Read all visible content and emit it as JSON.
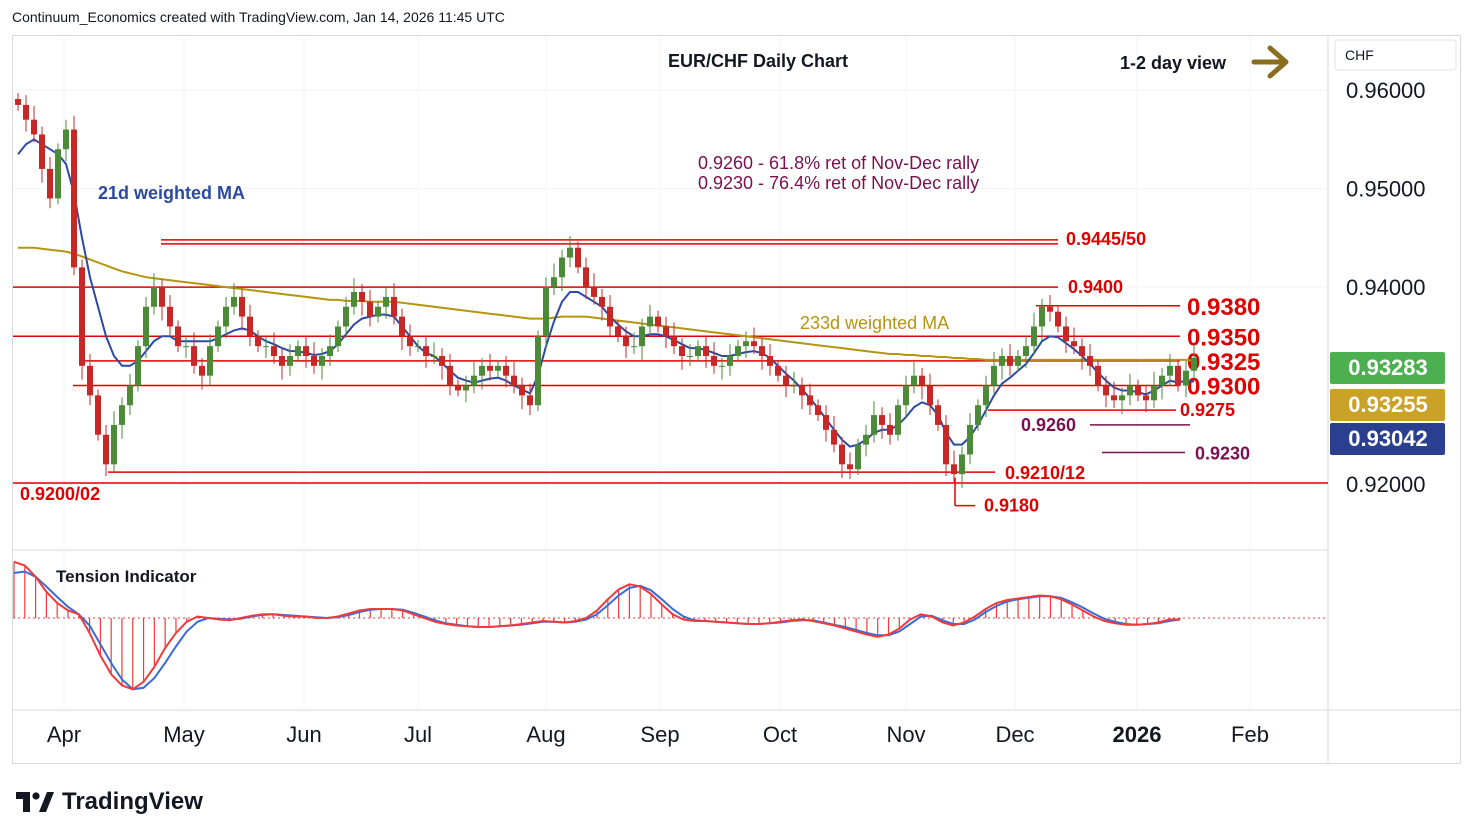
{
  "header": {
    "attribution": "Continuum_Economics created with TradingView.com, Jan 14, 2026 11:45 UTC"
  },
  "footer": {
    "logo_text": "TradingView"
  },
  "chart_title": "EUR/CHF Daily Chart",
  "view_label": "1-2 day view",
  "currency_label": "CHF",
  "ma_labels": {
    "short": "21d weighted MA",
    "long": "233d weighted MA"
  },
  "retracement_notes": [
    "0.9260 - 61.8% ret of Nov-Dec rally",
    "0.9230 - 76.4% ret of Nov-Dec rally"
  ],
  "indicator_label": "Tension Indicator",
  "colors": {
    "up": "#4c8a3a",
    "down": "#c62828",
    "level": "#e00000",
    "ma_short": "#2b4aa0",
    "ma_long": "#b5950f",
    "note": "#7a1050",
    "arrow": "#8a6d1e",
    "osc_red": "#ef3b3b",
    "osc_blue": "#3a6cd8"
  },
  "price_badges": [
    {
      "value": "0.93283",
      "color": "#4caf50"
    },
    {
      "value": "0.93255",
      "color": "#c9a227"
    },
    {
      "value": "0.93042",
      "color": "#2a3f8f"
    }
  ],
  "chart_data": {
    "type": "candlestick",
    "ylim": [
      0.9135,
      0.9655
    ],
    "y_ticks": [
      "0.96000",
      "0.95000",
      "0.94000",
      "0.92000"
    ],
    "x_ticks": [
      "Apr",
      "May",
      "Jun",
      "Jul",
      "Aug",
      "Sep",
      "Oct",
      "Nov",
      "Dec",
      "2026",
      "Feb"
    ],
    "grid": true,
    "levels": [
      {
        "label": "0.9445/50",
        "value": 0.9448,
        "bold": false
      },
      {
        "label": "0.9400",
        "value": 0.94,
        "bold": false
      },
      {
        "label": "0.9380",
        "value": 0.9381,
        "bold": true
      },
      {
        "label": "0.9350",
        "value": 0.935,
        "bold": true
      },
      {
        "label": "0.9325",
        "value": 0.9325,
        "bold": true
      },
      {
        "label": "0.9300",
        "value": 0.93,
        "bold": true
      },
      {
        "label": "0.9275",
        "value": 0.9275,
        "bold": false
      },
      {
        "label": "0.9260",
        "value": 0.926,
        "bold": false
      },
      {
        "label": "0.9230",
        "value": 0.9232,
        "bold": false
      },
      {
        "label": "0.9210/12",
        "value": 0.9212,
        "bold": false
      },
      {
        "label": "0.9200/02",
        "value": 0.9201,
        "bold": false
      },
      {
        "label": "0.9180",
        "value": 0.9178,
        "bold": false
      }
    ],
    "close_series": [
      0.9585,
      0.957,
      0.9555,
      0.952,
      0.949,
      0.954,
      0.956,
      0.942,
      0.932,
      0.929,
      0.925,
      0.922,
      0.926,
      0.928,
      0.93,
      0.934,
      0.938,
      0.94,
      0.938,
      0.936,
      0.934,
      0.934,
      0.932,
      0.931,
      0.934,
      0.936,
      0.938,
      0.939,
      0.937,
      0.935,
      0.934,
      0.934,
      0.933,
      0.932,
      0.933,
      0.934,
      0.933,
      0.932,
      0.933,
      0.934,
      0.936,
      0.938,
      0.9395,
      0.9385,
      0.937,
      0.938,
      0.939,
      0.937,
      0.935,
      0.934,
      0.934,
      0.933,
      0.933,
      0.932,
      0.93,
      0.9295,
      0.93,
      0.931,
      0.932,
      0.9315,
      0.932,
      0.931,
      0.93,
      0.929,
      0.928,
      0.935,
      0.94,
      0.941,
      0.943,
      0.944,
      0.942,
      0.94,
      0.939,
      0.938,
      0.936,
      0.935,
      0.934,
      0.934,
      0.936,
      0.937,
      0.936,
      0.935,
      0.934,
      0.933,
      0.933,
      0.934,
      0.933,
      0.932,
      0.932,
      0.933,
      0.934,
      0.9345,
      0.934,
      0.933,
      0.932,
      0.931,
      0.93,
      0.93,
      0.929,
      0.928,
      0.927,
      0.9255,
      0.924,
      0.922,
      0.9215,
      0.924,
      0.925,
      0.927,
      0.926,
      0.925,
      0.928,
      0.93,
      0.931,
      0.93,
      0.928,
      0.926,
      0.922,
      0.921,
      0.923,
      0.926,
      0.928,
      0.93,
      0.932,
      0.933,
      0.932,
      0.933,
      0.934,
      0.936,
      0.938,
      0.9375,
      0.936,
      0.9345,
      0.934,
      0.933,
      0.932,
      0.93,
      0.929,
      0.9285,
      0.929,
      0.93,
      0.929,
      0.9285,
      0.93,
      0.931,
      0.932,
      0.93,
      0.9315,
      0.9328
    ],
    "ma_21": [
      0.9535,
      0.9545,
      0.955,
      0.9545,
      0.954,
      0.9535,
      0.9525,
      0.9495,
      0.945,
      0.941,
      0.938,
      0.935,
      0.933,
      0.932,
      0.932,
      0.9325,
      0.9335,
      0.9345,
      0.935,
      0.935,
      0.9345,
      0.9345,
      0.9345,
      0.9345,
      0.9345,
      0.9348,
      0.9352,
      0.9356,
      0.9358,
      0.9356,
      0.935,
      0.9345,
      0.9342,
      0.9338,
      0.9335,
      0.9335,
      0.9333,
      0.9331,
      0.9332,
      0.9335,
      0.9342,
      0.9352,
      0.9362,
      0.9368,
      0.937,
      0.9372,
      0.9372,
      0.937,
      0.936,
      0.935,
      0.934,
      0.9333,
      0.933,
      0.9323,
      0.9315,
      0.9308,
      0.9305,
      0.9303,
      0.9305,
      0.9307,
      0.9308,
      0.9305,
      0.93,
      0.9296,
      0.9292,
      0.931,
      0.934,
      0.9365,
      0.9385,
      0.9395,
      0.9395,
      0.939,
      0.9385,
      0.938,
      0.937,
      0.9362,
      0.9355,
      0.935,
      0.935,
      0.9352,
      0.9352,
      0.935,
      0.9346,
      0.9342,
      0.9338,
      0.9338,
      0.9336,
      0.9333,
      0.933,
      0.933,
      0.9332,
      0.9334,
      0.9335,
      0.9333,
      0.9328,
      0.932,
      0.9312,
      0.9305,
      0.9296,
      0.9287,
      0.9277,
      0.9266,
      0.9255,
      0.9245,
      0.9238,
      0.924,
      0.9245,
      0.9252,
      0.9255,
      0.9255,
      0.926,
      0.9268,
      0.9278,
      0.9283,
      0.928,
      0.927,
      0.9252,
      0.924,
      0.924,
      0.9248,
      0.926,
      0.9275,
      0.929,
      0.9302,
      0.9308,
      0.9315,
      0.9322,
      0.9333,
      0.9345,
      0.935,
      0.9349,
      0.9343,
      0.9337,
      0.933,
      0.9322,
      0.9313,
      0.9305,
      0.9298,
      0.9295,
      0.9295,
      0.9293,
      0.9291,
      0.9295,
      0.93,
      0.9305,
      0.9303,
      0.9305,
      0.9304
    ],
    "ma_233": [
      0.944,
      0.944,
      0.944,
      0.9439,
      0.9438,
      0.9437,
      0.9436,
      0.9434,
      0.9431,
      0.9428,
      0.9425,
      0.9422,
      0.9419,
      0.9416,
      0.9414,
      0.9412,
      0.941,
      0.9409,
      0.9408,
      0.9407,
      0.9406,
      0.9405,
      0.9404,
      0.9403,
      0.9402,
      0.9401,
      0.94,
      0.9399,
      0.9398,
      0.9397,
      0.9396,
      0.9395,
      0.9394,
      0.9393,
      0.9392,
      0.9391,
      0.939,
      0.9389,
      0.9388,
      0.9387,
      0.9387,
      0.9386,
      0.9386,
      0.9386,
      0.9385,
      0.9385,
      0.9385,
      0.9385,
      0.9384,
      0.9383,
      0.9382,
      0.9381,
      0.938,
      0.9379,
      0.9378,
      0.9377,
      0.9376,
      0.9375,
      0.9374,
      0.9373,
      0.9372,
      0.9371,
      0.937,
      0.9369,
      0.9368,
      0.9368,
      0.9368,
      0.9369,
      0.937,
      0.937,
      0.937,
      0.937,
      0.9369,
      0.9368,
      0.9367,
      0.9366,
      0.9365,
      0.9364,
      0.9363,
      0.9362,
      0.9361,
      0.936,
      0.9359,
      0.9358,
      0.9357,
      0.9356,
      0.9355,
      0.9354,
      0.9353,
      0.9352,
      0.9351,
      0.935,
      0.9349,
      0.9348,
      0.9347,
      0.9346,
      0.9345,
      0.9344,
      0.9343,
      0.9342,
      0.9341,
      0.934,
      0.9339,
      0.9338,
      0.9337,
      0.9336,
      0.9335,
      0.9334,
      0.9333,
      0.9332,
      0.9332,
      0.9331,
      0.9331,
      0.933,
      0.933,
      0.9329,
      0.9329,
      0.9328,
      0.9328,
      0.9327,
      0.9327,
      0.9326,
      0.9326,
      0.9326,
      0.9326,
      0.9326,
      0.9326,
      0.9326,
      0.9326,
      0.9326,
      0.9326,
      0.9326,
      0.9326,
      0.9326,
      0.9326,
      0.9326,
      0.9326,
      0.9326,
      0.9326,
      0.9326,
      0.9326,
      0.9326,
      0.9326,
      0.9326,
      0.9326,
      0.9326,
      0.9326,
      0.9325
    ],
    "oscillator": [
      0.75,
      0.7,
      0.55,
      0.35,
      0.2,
      0.1,
      0.05,
      -0.2,
      -0.5,
      -0.75,
      -0.9,
      -0.95,
      -0.85,
      -0.65,
      -0.4,
      -0.2,
      -0.05,
      0.02,
      0.0,
      -0.02,
      -0.03,
      0.0,
      0.03,
      0.05,
      0.05,
      0.03,
      0.02,
      0.02,
      0.0,
      0.0,
      0.02,
      0.06,
      0.1,
      0.12,
      0.12,
      0.12,
      0.1,
      0.05,
      0.0,
      -0.05,
      -0.08,
      -0.1,
      -0.11,
      -0.12,
      -0.12,
      -0.11,
      -0.1,
      -0.08,
      -0.06,
      -0.04,
      -0.05,
      -0.06,
      -0.04,
      0.0,
      0.1,
      0.25,
      0.38,
      0.45,
      0.42,
      0.32,
      0.18,
      0.05,
      -0.02,
      -0.04,
      -0.04,
      -0.05,
      -0.06,
      -0.07,
      -0.08,
      -0.08,
      -0.07,
      -0.05,
      -0.03,
      -0.02,
      -0.04,
      -0.07,
      -0.1,
      -0.14,
      -0.18,
      -0.22,
      -0.25,
      -0.22,
      -0.14,
      -0.02,
      0.05,
      0.02,
      -0.06,
      -0.1,
      -0.06,
      0.02,
      0.12,
      0.2,
      0.24,
      0.26,
      0.28,
      0.3,
      0.29,
      0.25,
      0.18,
      0.1,
      0.02,
      -0.04,
      -0.07,
      -0.09,
      -0.09,
      -0.08,
      -0.06,
      -0.02,
      -0.02
    ],
    "oscillator_signal": [
      0.6,
      0.62,
      0.55,
      0.42,
      0.28,
      0.15,
      0.05,
      -0.1,
      -0.35,
      -0.6,
      -0.82,
      -0.95,
      -0.93,
      -0.8,
      -0.6,
      -0.38,
      -0.18,
      -0.05,
      0.0,
      -0.01,
      -0.02,
      -0.01,
      0.02,
      0.04,
      0.05,
      0.04,
      0.03,
      0.02,
      0.01,
      0.0,
      0.01,
      0.04,
      0.08,
      0.11,
      0.12,
      0.12,
      0.11,
      0.07,
      0.02,
      -0.03,
      -0.07,
      -0.09,
      -0.11,
      -0.12,
      -0.12,
      -0.11,
      -0.1,
      -0.09,
      -0.07,
      -0.05,
      -0.05,
      -0.06,
      -0.05,
      -0.02,
      0.05,
      0.17,
      0.3,
      0.4,
      0.43,
      0.37,
      0.25,
      0.12,
      0.02,
      -0.03,
      -0.04,
      -0.05,
      -0.06,
      -0.07,
      -0.08,
      -0.08,
      -0.07,
      -0.06,
      -0.04,
      -0.03,
      -0.03,
      -0.06,
      -0.09,
      -0.12,
      -0.16,
      -0.2,
      -0.23,
      -0.23,
      -0.18,
      -0.08,
      0.02,
      0.03,
      -0.03,
      -0.08,
      -0.08,
      -0.02,
      0.08,
      0.16,
      0.22,
      0.25,
      0.27,
      0.29,
      0.29,
      0.27,
      0.21,
      0.14,
      0.06,
      -0.01,
      -0.05,
      -0.08,
      -0.09,
      -0.08,
      -0.07,
      -0.04,
      -0.02
    ]
  }
}
